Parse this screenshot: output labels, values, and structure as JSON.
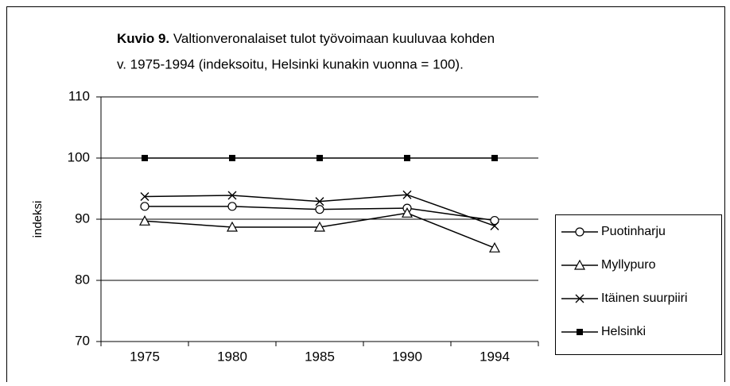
{
  "chart_data": {
    "type": "line",
    "title_label": "Kuvio 9.",
    "title_lines": [
      "Valtionveronalaiset tulot työvoimaan kuuluvaa kohden",
      "v. 1975-1994 (indeksoitu, Helsinki kunakin vuonna = 100)."
    ],
    "y_label": "indeksi",
    "categories": [
      "1975",
      "1980",
      "1985",
      "1990",
      "1994"
    ],
    "series": [
      {
        "name": "Puotinharju",
        "color": "#000000",
        "marker": "circle",
        "values": [
          92.1,
          92.1,
          91.6,
          91.8,
          89.8
        ]
      },
      {
        "name": "Myllypuro",
        "color": "#000000",
        "marker": "triangle",
        "values": [
          89.7,
          88.7,
          88.7,
          91.0,
          85.3
        ]
      },
      {
        "name": "Itäinen suurpiiri",
        "color": "#000000",
        "marker": "x",
        "values": [
          93.7,
          93.9,
          92.9,
          94.0,
          88.9
        ]
      },
      {
        "name": "Helsinki",
        "color": "#000000",
        "marker": "square",
        "values": [
          100,
          100,
          100,
          100,
          100
        ]
      }
    ],
    "ylim": [
      70,
      110
    ],
    "yticks": [
      70,
      80,
      90,
      100,
      110
    ],
    "grid": true,
    "legend": "right"
  }
}
